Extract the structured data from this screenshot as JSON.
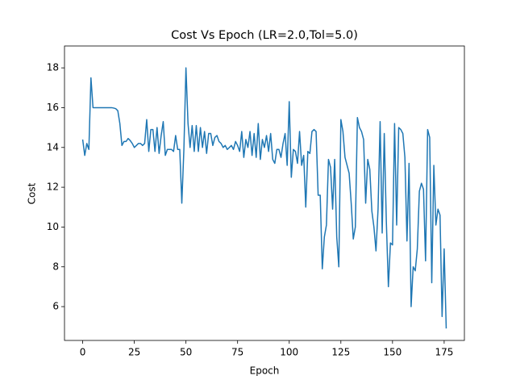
{
  "chart_data": {
    "type": "line",
    "title": "Cost Vs Epoch (LR=2.0,Tol=5.0)",
    "x_label": "Epoch",
    "y_label": "Cost",
    "x": [
      0,
      1,
      2,
      3,
      4,
      5,
      6,
      7,
      8,
      9,
      10,
      11,
      12,
      13,
      14,
      15,
      16,
      17,
      18,
      19,
      20,
      21,
      22,
      23,
      24,
      25,
      26,
      27,
      28,
      29,
      30,
      31,
      32,
      33,
      34,
      35,
      36,
      37,
      38,
      39,
      40,
      41,
      42,
      43,
      44,
      45,
      46,
      47,
      48,
      49,
      50,
      51,
      52,
      53,
      54,
      55,
      56,
      57,
      58,
      59,
      60,
      61,
      62,
      63,
      64,
      65,
      66,
      67,
      68,
      69,
      70,
      71,
      72,
      73,
      74,
      75,
      76,
      77,
      78,
      79,
      80,
      81,
      82,
      83,
      84,
      85,
      86,
      87,
      88,
      89,
      90,
      91,
      92,
      93,
      94,
      95,
      96,
      97,
      98,
      99,
      100,
      101,
      102,
      103,
      104,
      105,
      106,
      107,
      108,
      109,
      110,
      111,
      112,
      113,
      114,
      115,
      116,
      117,
      118,
      119,
      120,
      121,
      122,
      123,
      124,
      125,
      126,
      127,
      128,
      129,
      130,
      131,
      132,
      133,
      134,
      135,
      136,
      137,
      138,
      139,
      140,
      141,
      142,
      143,
      144,
      145,
      146,
      147,
      148,
      149,
      150,
      151,
      152,
      153,
      154,
      155,
      156,
      157,
      158,
      159,
      160,
      161,
      162,
      163,
      164,
      165,
      166,
      167,
      168,
      169,
      170,
      171,
      172,
      173,
      174,
      175,
      176
    ],
    "series": [
      {
        "name": "Cost",
        "color": "#1f77b4",
        "values": [
          14.4,
          13.6,
          14.2,
          13.9,
          17.5,
          16.0,
          16.0,
          16.0,
          16.0,
          16.0,
          16.0,
          16.0,
          16.0,
          16.0,
          16.0,
          15.98,
          15.95,
          15.85,
          15.2,
          14.1,
          14.3,
          14.3,
          14.45,
          14.35,
          14.2,
          14.0,
          14.1,
          14.2,
          14.2,
          14.1,
          14.2,
          15.4,
          13.8,
          14.9,
          14.9,
          13.8,
          15.0,
          13.7,
          14.6,
          15.3,
          13.6,
          13.9,
          13.9,
          13.9,
          13.8,
          14.6,
          13.9,
          13.9,
          11.2,
          13.9,
          18.0,
          15.2,
          14.0,
          15.1,
          13.8,
          15.1,
          13.8,
          15.0,
          14.0,
          14.8,
          13.7,
          14.7,
          14.7,
          14.1,
          14.5,
          14.6,
          14.3,
          14.2,
          14.0,
          14.1,
          13.9,
          14.0,
          14.1,
          13.9,
          14.3,
          14.1,
          13.8,
          14.8,
          13.5,
          14.4,
          14.0,
          14.8,
          13.6,
          14.7,
          13.5,
          15.2,
          13.4,
          14.4,
          14.0,
          14.6,
          13.8,
          14.7,
          13.4,
          13.2,
          13.9,
          13.9,
          13.5,
          14.2,
          14.7,
          13.1,
          16.3,
          12.5,
          13.9,
          13.8,
          13.2,
          14.8,
          13.1,
          13.6,
          11.0,
          13.8,
          13.7,
          14.8,
          14.9,
          14.8,
          11.6,
          11.6,
          7.9,
          9.5,
          10.1,
          13.4,
          13.0,
          10.9,
          13.4,
          9.5,
          8.0,
          15.4,
          14.8,
          13.5,
          13.1,
          12.7,
          11.2,
          9.4,
          10.0,
          15.5,
          15.0,
          14.8,
          14.4,
          11.2,
          13.4,
          12.9,
          10.8,
          10.0,
          8.8,
          10.9,
          15.3,
          9.7,
          14.7,
          10.3,
          7.0,
          9.2,
          9.1,
          15.2,
          10.1,
          15.0,
          14.9,
          14.7,
          13.5,
          9.3,
          13.2,
          6.0,
          8.0,
          7.8,
          8.9,
          11.8,
          12.2,
          11.9,
          8.3,
          14.9,
          14.5,
          7.2,
          13.1,
          10.1,
          10.9,
          10.6,
          5.5,
          8.9,
          4.9
        ]
      }
    ],
    "xlim": [
      -8.8,
      184.8
    ],
    "xticks": [
      0,
      25,
      50,
      75,
      100,
      125,
      150,
      175
    ],
    "ylim": [
      4.3,
      19.1
    ],
    "yticks": [
      6,
      8,
      10,
      12,
      14,
      16,
      18
    ],
    "grid": false
  }
}
